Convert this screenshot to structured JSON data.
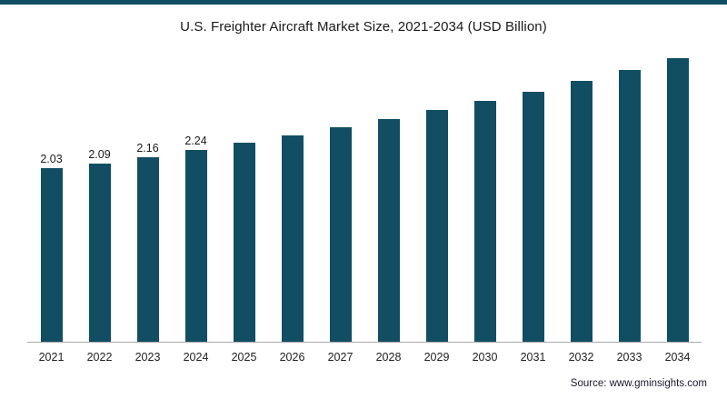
{
  "page": {
    "title": "U.S. Freighter Aircraft Market Size, 2021-2034 (USD Billion)",
    "source_text": "Source: www.gminsights.com"
  },
  "colors": {
    "bar": "#114e63",
    "top_border": "#114e63",
    "axis": "#aaaaaa"
  },
  "chart_data": {
    "type": "bar",
    "title": "U.S. Freighter Aircraft Market Size, 2021-2034 (USD Billion)",
    "xlabel": "",
    "ylabel": "",
    "categories": [
      "2021",
      "2022",
      "2023",
      "2024",
      "2025",
      "2026",
      "2027",
      "2028",
      "2029",
      "2030",
      "2031",
      "2032",
      "2033",
      "2034"
    ],
    "values": [
      2.03,
      2.09,
      2.16,
      2.24,
      2.33,
      2.42,
      2.51,
      2.61,
      2.71,
      2.82,
      2.93,
      3.05,
      3.18,
      3.32
    ],
    "value_labels": [
      "2.03",
      "2.09",
      "2.16",
      "2.24",
      "",
      "",
      "",
      "",
      "",
      "",
      "",
      "",
      "",
      ""
    ],
    "ylim": [
      0,
      3.6
    ],
    "grid": false,
    "legend": false,
    "annotation": "Only the first four bars (2021-2024) display numeric data labels; later values estimated from bar heights"
  }
}
